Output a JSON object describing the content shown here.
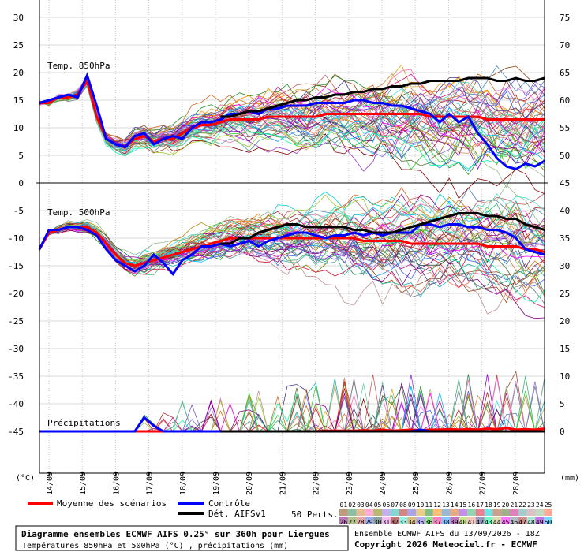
{
  "chart_data": {
    "type": "line",
    "dates": [
      "14/09",
      "15/09",
      "16/09",
      "17/09",
      "18/09",
      "19/09",
      "20/09",
      "21/09",
      "22/09",
      "23/09",
      "24/09",
      "25/09",
      "26/09",
      "27/09",
      "28/09"
    ],
    "left_axis": {
      "unit": "(°C)",
      "ticks_top": [
        "30",
        "25",
        "20",
        "15",
        "10",
        "5",
        "0"
      ],
      "ticks_bottom": [
        "-5",
        "-10",
        "-15",
        "-20",
        "-25",
        "-30",
        "-35",
        "-40",
        "-45"
      ]
    },
    "right_axis": {
      "unit": "(mm)",
      "ticks_top": [
        "75",
        "70",
        "65",
        "60",
        "55",
        "50",
        "45"
      ],
      "ticks_bottom": [
        "40",
        "35",
        "30",
        "25",
        "20",
        "15",
        "10",
        "5",
        "0"
      ]
    },
    "panels": {
      "t850_label": "Temp. 850hPa",
      "t500_label": "Temp. 500hPa",
      "precip_label": "Précipitations"
    },
    "series": [
      {
        "name": "Moyenne des scénarios",
        "color": "#ff0000",
        "t850": [
          14.5,
          14.5,
          15.5,
          15.5,
          16,
          18.5,
          12,
          8,
          7,
          6.5,
          8,
          8.5,
          7.5,
          8,
          8,
          9,
          10,
          10.5,
          10.5,
          11,
          11.5,
          11.5,
          11.5,
          11.5,
          12,
          12,
          12,
          12,
          12,
          12,
          12.5,
          12.5,
          12.5,
          12.5,
          12.5,
          12.5,
          12.5,
          12.5,
          12.5,
          12.5,
          12.5,
          12,
          12,
          12,
          12,
          12,
          12,
          11.5,
          11.5,
          11.5,
          11.5,
          11.5,
          11.5,
          11.5
        ],
        "t500": [
          -12,
          -9,
          -8.5,
          -8,
          -8,
          -8,
          -9,
          -11,
          -13,
          -14.5,
          -15,
          -14.5,
          -14,
          -13.5,
          -13,
          -12.5,
          -12,
          -11.5,
          -11,
          -10.5,
          -10,
          -10,
          -10,
          -10,
          -10,
          -10,
          -10,
          -10,
          -10,
          -10,
          -10,
          -10,
          -10,
          -10,
          -10.5,
          -10.5,
          -10.5,
          -10.5,
          -10.5,
          -11,
          -11,
          -11,
          -11,
          -11,
          -11,
          -11,
          -11,
          -11.5,
          -11.5,
          -11.5,
          -11.5,
          -12,
          -12,
          -12.5
        ],
        "precip": [
          0,
          0,
          0,
          0,
          0,
          0,
          0,
          0,
          0,
          0,
          0,
          0,
          0,
          0,
          0,
          0,
          0,
          0,
          0,
          0,
          0,
          0,
          0,
          0,
          0,
          0,
          0,
          0,
          0,
          0,
          0.1,
          0.1,
          0.1,
          0.1,
          0.2,
          0.1,
          0.3,
          0.1,
          0.2,
          0.3,
          0.2,
          0.3,
          0.3,
          0.4,
          0.3,
          0.4,
          0.3,
          0.5,
          0.4,
          0.6,
          0.3,
          0.4,
          0.3,
          0.5
        ]
      },
      {
        "name": "Contrôle",
        "color": "#0000ff",
        "t850": [
          14.5,
          15,
          15.5,
          16,
          15.5,
          19.5,
          14,
          8,
          7,
          6.5,
          8.5,
          9,
          7,
          8,
          8.5,
          8,
          10,
          11,
          11,
          11.5,
          12.5,
          12.5,
          13,
          12.5,
          13.5,
          13.5,
          14,
          14,
          14,
          14.5,
          14.5,
          14.5,
          14.5,
          15,
          15,
          14.5,
          14.5,
          14,
          14,
          13.5,
          13,
          12.5,
          11,
          12.5,
          11,
          12,
          9,
          7,
          4.5,
          3,
          2.5,
          3.5,
          3,
          4
        ],
        "t500": [
          -12,
          -8.5,
          -8.5,
          -8,
          -8,
          -8.5,
          -9.5,
          -12,
          -14,
          -15,
          -16,
          -15,
          -13,
          -14.5,
          -16.5,
          -14,
          -13,
          -11.5,
          -11.5,
          -11,
          -11.5,
          -11,
          -10.5,
          -11.5,
          -10.5,
          -10,
          -9.5,
          -9,
          -9,
          -9.5,
          -10,
          -9.5,
          -9.5,
          -9,
          -9.5,
          -9,
          -9.5,
          -9,
          -9,
          -9,
          -7.5,
          -7.5,
          -8,
          -7.5,
          -7.5,
          -8,
          -8,
          -8.5,
          -8.5,
          -9,
          -10,
          -12,
          -12.5,
          -13
        ],
        "precip": [
          0,
          0,
          0,
          0,
          0,
          0,
          0,
          0,
          0,
          0,
          0,
          2.5,
          1,
          0,
          0,
          0,
          0,
          0,
          0,
          0,
          0,
          0,
          0,
          0,
          0,
          0,
          0,
          0,
          0,
          0,
          0,
          0,
          0,
          0,
          0,
          0,
          0,
          0,
          0,
          0,
          0.3,
          0,
          0,
          0,
          0,
          0,
          0,
          0,
          0,
          0,
          0,
          0,
          0,
          0
        ]
      },
      {
        "name": "Dét. AIFSv1",
        "color": "#000000",
        "t850": [
          null,
          null,
          null,
          null,
          null,
          null,
          null,
          null,
          null,
          null,
          null,
          null,
          null,
          null,
          null,
          null,
          null,
          null,
          null,
          12,
          12,
          12.5,
          13,
          13,
          13.5,
          14,
          14.5,
          15,
          15,
          15.5,
          15.5,
          16,
          16,
          16.5,
          16.5,
          17,
          17,
          17.5,
          17.5,
          18,
          18,
          18.5,
          18.5,
          18.5,
          18.5,
          19,
          19,
          19,
          18.5,
          18.5,
          19,
          18.5,
          18.5,
          19
        ],
        "t500": [
          null,
          null,
          null,
          null,
          null,
          null,
          null,
          null,
          null,
          null,
          null,
          null,
          null,
          null,
          null,
          null,
          null,
          null,
          null,
          -11,
          -11,
          -10,
          -10,
          -9,
          -8.5,
          -8,
          -7.5,
          -7.5,
          -8,
          -8,
          -8,
          -8,
          -8,
          -8.5,
          -8.5,
          -9,
          -9,
          -9,
          -8.5,
          -8,
          -7.5,
          -7,
          -6.5,
          -6,
          -5.5,
          -5.5,
          -5.5,
          -6,
          -6,
          -6.5,
          -6.5,
          -7.5,
          -8,
          -8.5
        ],
        "precip": [
          null,
          null,
          null,
          null,
          null,
          null,
          null,
          null,
          null,
          null,
          null,
          null,
          null,
          null,
          null,
          null,
          null,
          null,
          null,
          0,
          0,
          0,
          0,
          0,
          0,
          0,
          0,
          0,
          0,
          0,
          0,
          0,
          0,
          0,
          0,
          0,
          0,
          0,
          0,
          0,
          0,
          0,
          0,
          0,
          0,
          0,
          0,
          0,
          0,
          0,
          0,
          0,
          0,
          0
        ]
      }
    ],
    "perturbations_label": "50 Perts.",
    "perturbations": [
      {
        "id": "01",
        "color": "#8b4513"
      },
      {
        "id": "02",
        "color": "#2e8b57"
      },
      {
        "id": "03",
        "color": "#cd853f"
      },
      {
        "id": "04",
        "color": "#ff69b4"
      },
      {
        "id": "05",
        "color": "#808000"
      },
      {
        "id": "06",
        "color": "#9370db"
      },
      {
        "id": "07",
        "color": "#20b2aa"
      },
      {
        "id": "08",
        "color": "#b22222"
      },
      {
        "id": "09",
        "color": "#6a5acd"
      },
      {
        "id": "10",
        "color": "#daa520"
      },
      {
        "id": "11",
        "color": "#228b22"
      },
      {
        "id": "12",
        "color": "#ff8c00"
      },
      {
        "id": "13",
        "color": "#4682b4"
      },
      {
        "id": "14",
        "color": "#d2691e"
      },
      {
        "id": "15",
        "color": "#9932cc"
      },
      {
        "id": "16",
        "color": "#3cb371"
      },
      {
        "id": "17",
        "color": "#dc143c"
      },
      {
        "id": "18",
        "color": "#00ced1"
      },
      {
        "id": "19",
        "color": "#a0522d"
      },
      {
        "id": "20",
        "color": "#556b2f"
      },
      {
        "id": "21",
        "color": "#c71585"
      },
      {
        "id": "22",
        "color": "#5f9ea0"
      },
      {
        "id": "23",
        "color": "#bc8f8f"
      },
      {
        "id": "24",
        "color": "#8fbc8f"
      },
      {
        "id": "25",
        "color": "#ff6347"
      },
      {
        "id": "26",
        "color": "#800080"
      },
      {
        "id": "27",
        "color": "#6b8e23"
      },
      {
        "id": "28",
        "color": "#cd5c5c"
      },
      {
        "id": "29",
        "color": "#4169e1"
      },
      {
        "id": "30",
        "color": "#2f4f4f"
      },
      {
        "id": "31",
        "color": "#ee82ee"
      },
      {
        "id": "32",
        "color": "#8b0000"
      },
      {
        "id": "33",
        "color": "#40e0d0"
      },
      {
        "id": "34",
        "color": "#b8860b"
      },
      {
        "id": "35",
        "color": "#7b68ee"
      },
      {
        "id": "36",
        "color": "#32cd32"
      },
      {
        "id": "37",
        "color": "#ff1493"
      },
      {
        "id": "38",
        "color": "#1e90ff"
      },
      {
        "id": "39",
        "color": "#8b008b"
      },
      {
        "id": "40",
        "color": "#9acd32"
      },
      {
        "id": "41",
        "color": "#e9967a"
      },
      {
        "id": "42",
        "color": "#483d8b"
      },
      {
        "id": "43",
        "color": "#00fa9a"
      },
      {
        "id": "44",
        "color": "#bdb76b"
      },
      {
        "id": "45",
        "color": "#ff00ff"
      },
      {
        "id": "46",
        "color": "#708090"
      },
      {
        "id": "47",
        "color": "#a52a2a"
      },
      {
        "id": "48",
        "color": "#66cdaa"
      },
      {
        "id": "49",
        "color": "#9400d3"
      },
      {
        "id": "50",
        "color": "#00bfff"
      }
    ],
    "legend": {
      "mean": "Moyenne des scénarios",
      "control": "Contrôle",
      "det": "Dét. AIFSv1"
    }
  },
  "footer": {
    "title": "Diagramme ensembles ECMWF AIFS 0.25° sur 360h pour Liergues",
    "subtitle": "Températures 850hPa et 500hPa (°C) , précipitations (mm)",
    "run": "Ensemble ECMWF AIFS du 13/09/2026 - 18Z",
    "copyright": "Copyright 2026 Meteociel.fr - ECMWF"
  }
}
